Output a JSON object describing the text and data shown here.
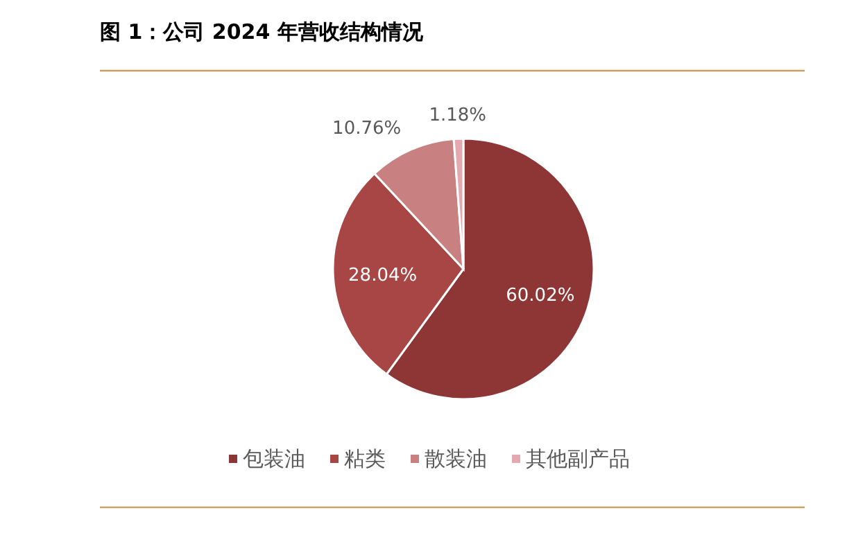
{
  "chart_data": {
    "type": "pie",
    "title": "图 1：公司 2024 年营收结构情况",
    "categories": [
      "包装油",
      "粘类",
      "散装油",
      "其他副产品"
    ],
    "values": [
      60.02,
      28.04,
      10.76,
      1.18
    ],
    "colors": [
      "#8e3636",
      "#a84545",
      "#c98080",
      "#e2aab0"
    ],
    "value_labels": [
      "60.02%",
      "28.04%",
      "10.76%",
      "1.18%"
    ],
    "legend": "bottom"
  }
}
